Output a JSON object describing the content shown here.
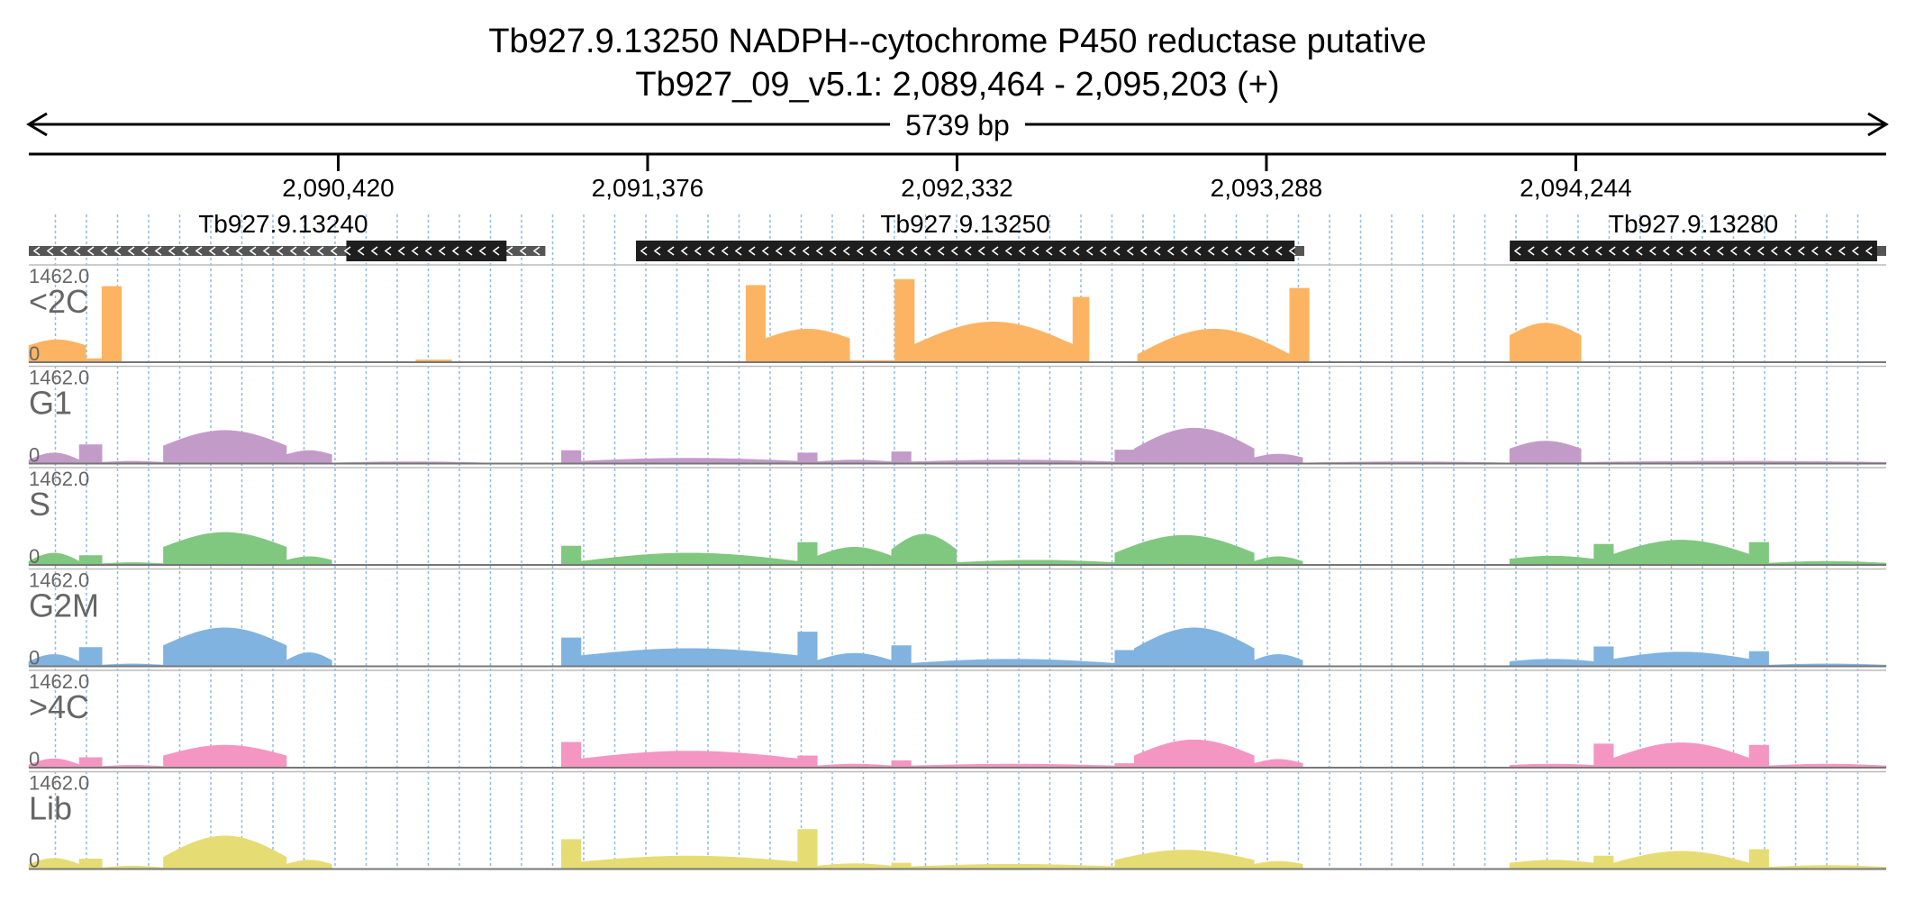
{
  "title_line1": "Tb927.9.13250  NADPH--cytochrome P450 reductase  putative",
  "title_line2": "Tb927_09_v5.1: 2,089,464 - 2,095,203 (+)",
  "span_label": "5739 bp",
  "colors": {
    "<2C": "#fdb462",
    "G1": "#c39bc9",
    "S": "#80c780",
    "G2M": "#80b3e0",
    ">4C": "#f595c2",
    "Lib": "#e6dc74",
    "gene_box": "#1e1e1e",
    "gene_line": "#555555",
    "grid": "#8fbce6",
    "axis": "#000000",
    "track_label": "#666666"
  },
  "chart_data": {
    "type": "area",
    "genome_range": [
      2089464,
      2095203
    ],
    "x_ticks": [
      {
        "pos": 2090420,
        "label": "2,090,420"
      },
      {
        "pos": 2091376,
        "label": "2,091,376"
      },
      {
        "pos": 2092332,
        "label": "2,092,332"
      },
      {
        "pos": 2093288,
        "label": "2,093,288"
      },
      {
        "pos": 2094244,
        "label": "2,094,244"
      }
    ],
    "genes": [
      {
        "name": "Tb927.9.13240",
        "line": [
          2089464,
          2091060
        ],
        "cds": [
          2090445,
          2090940
        ],
        "strand": "-"
      },
      {
        "name": "Tb927.9.13250",
        "line": [
          2091340,
          2093405
        ],
        "cds": [
          2091340,
          2093375
        ],
        "strand": "-"
      },
      {
        "name": "Tb927.9.13280",
        "line": [
          2094040,
          2095203
        ],
        "cds": [
          2094040,
          2095175
        ],
        "strand": "-"
      }
    ],
    "tracks": [
      {
        "name": "<2C",
        "ymax": "1462.0",
        "ymin": "0",
        "segments": [
          [
            2089464,
            2089640,
            280,
            380,
            "dome"
          ],
          [
            2089640,
            2089690,
            60,
            60,
            "flat"
          ],
          [
            2089690,
            2089685,
            0,
            0,
            "flat"
          ],
          [
            2089690,
            2089700,
            30,
            30,
            "flat"
          ],
          [
            2089690,
            2089690,
            0,
            0,
            "flat"
          ],
          [
            2089690,
            2089695,
            0,
            0,
            "flat"
          ],
          [
            2089690,
            2089690,
            0,
            0,
            "flat"
          ],
          [
            2089690,
            2089690,
            0,
            0,
            "flat"
          ],
          [
            2089700,
            2089690,
            0,
            0,
            "flat"
          ],
          [
            2089690,
            2089700,
            0,
            0,
            "flat"
          ],
          [
            2089690,
            2089690,
            0,
            0,
            "flat"
          ],
          [
            2089690,
            2089690,
            0,
            0,
            "flat"
          ],
          [
            2089690,
            2089690,
            0,
            0,
            "flat"
          ],
          [
            2089690,
            2089690,
            0,
            0,
            "flat"
          ],
          [
            2089690,
            2089690,
            0,
            0,
            "flat"
          ],
          [
            2089690,
            2089690,
            0,
            0,
            "flat"
          ],
          [
            2089690,
            2089690,
            0,
            0,
            "flat"
          ],
          [
            2089690,
            2089690,
            0,
            0,
            "flat"
          ],
          [
            2089690,
            2089690,
            0,
            0,
            "flat"
          ],
          [
            2089690,
            2089690,
            0,
            0,
            "flat"
          ],
          [
            2089690,
            2089750,
            1280,
            1280,
            "flat"
          ],
          [
            2090660,
            2090770,
            40,
            40,
            "flat"
          ],
          [
            2091680,
            2091740,
            1300,
            1300,
            "flat"
          ],
          [
            2091740,
            2092000,
            400,
            560,
            "dome"
          ],
          [
            2092000,
            2092140,
            30,
            30,
            "flat"
          ],
          [
            2092140,
            2092200,
            1400,
            1400,
            "flat"
          ],
          [
            2092200,
            2092690,
            300,
            680,
            "dome"
          ],
          [
            2092690,
            2092740,
            1100,
            1100,
            "flat"
          ],
          [
            2092890,
            2093360,
            130,
            560,
            "dome"
          ],
          [
            2093360,
            2093420,
            1250,
            1250,
            "flat"
          ],
          [
            2094040,
            2094260,
            450,
            660,
            "dome"
          ]
        ]
      },
      {
        "name": "G1",
        "ymax": "1462.0",
        "ymin": "0",
        "segments": [
          [
            2089464,
            2089620,
            60,
            180,
            "dome"
          ],
          [
            2089620,
            2089690,
            320,
            320,
            "flat"
          ],
          [
            2089690,
            2089880,
            20,
            40,
            "dome"
          ],
          [
            2089880,
            2090260,
            300,
            560,
            "dome"
          ],
          [
            2090260,
            2090400,
            150,
            220,
            "dome"
          ],
          [
            2090400,
            2090880,
            10,
            30,
            "dome"
          ],
          [
            2091110,
            2091170,
            220,
            220,
            "flat"
          ],
          [
            2091170,
            2091840,
            40,
            90,
            "dome"
          ],
          [
            2091840,
            2091900,
            180,
            180,
            "flat"
          ],
          [
            2091900,
            2092130,
            30,
            60,
            "dome"
          ],
          [
            2092130,
            2092190,
            200,
            200,
            "flat"
          ],
          [
            2092190,
            2092820,
            30,
            60,
            "dome"
          ],
          [
            2092820,
            2092880,
            230,
            230,
            "flat"
          ],
          [
            2092880,
            2093250,
            250,
            600,
            "dome"
          ],
          [
            2093250,
            2093400,
            100,
            160,
            "dome"
          ],
          [
            2093400,
            2094040,
            10,
            30,
            "dome"
          ],
          [
            2094040,
            2094260,
            250,
            380,
            "dome"
          ],
          [
            2094260,
            2095203,
            20,
            40,
            "dome"
          ]
        ]
      },
      {
        "name": "S",
        "ymax": "1462.0",
        "ymin": "0",
        "segments": [
          [
            2089464,
            2089620,
            60,
            200,
            "dome"
          ],
          [
            2089620,
            2089690,
            160,
            160,
            "flat"
          ],
          [
            2089690,
            2089880,
            20,
            40,
            "dome"
          ],
          [
            2089880,
            2090260,
            300,
            550,
            "dome"
          ],
          [
            2090260,
            2090400,
            80,
            140,
            "dome"
          ],
          [
            2091110,
            2091170,
            320,
            320,
            "flat"
          ],
          [
            2091170,
            2091840,
            60,
            200,
            "dome"
          ],
          [
            2091840,
            2091900,
            380,
            380,
            "flat"
          ],
          [
            2091900,
            2092130,
            150,
            300,
            "dome"
          ],
          [
            2092130,
            2092330,
            260,
            520,
            "dome"
          ],
          [
            2092330,
            2092820,
            40,
            80,
            "dome"
          ],
          [
            2092820,
            2093250,
            200,
            500,
            "dome"
          ],
          [
            2093250,
            2093400,
            60,
            140,
            "dome"
          ],
          [
            2094040,
            2094300,
            100,
            150,
            "dome"
          ],
          [
            2094300,
            2094360,
            350,
            350,
            "flat"
          ],
          [
            2094360,
            2094780,
            180,
            420,
            "dome"
          ],
          [
            2094780,
            2094840,
            380,
            380,
            "flat"
          ],
          [
            2094840,
            2095203,
            30,
            60,
            "dome"
          ]
        ]
      },
      {
        "name": "G2M",
        "ymax": "1462.0",
        "ymin": "0",
        "segments": [
          [
            2089464,
            2089620,
            80,
            200,
            "dome"
          ],
          [
            2089620,
            2089690,
            320,
            320,
            "flat"
          ],
          [
            2089690,
            2089880,
            20,
            40,
            "dome"
          ],
          [
            2089880,
            2090260,
            350,
            650,
            "dome"
          ],
          [
            2090260,
            2090400,
            100,
            230,
            "dome"
          ],
          [
            2091110,
            2091170,
            480,
            480,
            "flat"
          ],
          [
            2091170,
            2091840,
            180,
            300,
            "dome"
          ],
          [
            2091840,
            2091900,
            580,
            580,
            "flat"
          ],
          [
            2091900,
            2092130,
            100,
            220,
            "dome"
          ],
          [
            2092130,
            2092190,
            350,
            350,
            "flat"
          ],
          [
            2092190,
            2092820,
            50,
            120,
            "dome"
          ],
          [
            2092820,
            2092880,
            270,
            270,
            "flat"
          ],
          [
            2092880,
            2093250,
            300,
            650,
            "dome"
          ],
          [
            2093250,
            2093400,
            100,
            200,
            "dome"
          ],
          [
            2094040,
            2094300,
            80,
            120,
            "dome"
          ],
          [
            2094300,
            2094360,
            330,
            330,
            "flat"
          ],
          [
            2094360,
            2094780,
            120,
            240,
            "dome"
          ],
          [
            2094780,
            2094840,
            250,
            250,
            "flat"
          ],
          [
            2094840,
            2095203,
            20,
            40,
            "dome"
          ]
        ]
      },
      {
        "name": ">4C",
        "ymax": "1462.0",
        "ymin": "0",
        "segments": [
          [
            2089464,
            2089620,
            50,
            150,
            "dome"
          ],
          [
            2089620,
            2089690,
            170,
            170,
            "flat"
          ],
          [
            2089690,
            2089880,
            20,
            40,
            "dome"
          ],
          [
            2089880,
            2090260,
            200,
            380,
            "dome"
          ],
          [
            2091110,
            2091170,
            430,
            430,
            "flat"
          ],
          [
            2091170,
            2091840,
            150,
            280,
            "dome"
          ],
          [
            2091840,
            2091900,
            200,
            200,
            "flat"
          ],
          [
            2091900,
            2092130,
            30,
            60,
            "dome"
          ],
          [
            2092130,
            2092190,
            120,
            120,
            "flat"
          ],
          [
            2092190,
            2092820,
            30,
            60,
            "dome"
          ],
          [
            2092820,
            2092880,
            70,
            70,
            "flat"
          ],
          [
            2092880,
            2093250,
            200,
            470,
            "dome"
          ],
          [
            2093250,
            2093400,
            70,
            140,
            "dome"
          ],
          [
            2094040,
            2094300,
            40,
            60,
            "dome"
          ],
          [
            2094300,
            2094360,
            400,
            400,
            "flat"
          ],
          [
            2094360,
            2094780,
            160,
            420,
            "dome"
          ],
          [
            2094780,
            2094840,
            380,
            380,
            "flat"
          ],
          [
            2094840,
            2095203,
            30,
            60,
            "dome"
          ]
        ]
      },
      {
        "name": "Lib",
        "ymax": "1462.0",
        "ymin": "0",
        "segments": [
          [
            2089464,
            2089620,
            80,
            180,
            "dome"
          ],
          [
            2089620,
            2089690,
            170,
            170,
            "flat"
          ],
          [
            2089690,
            2089880,
            20,
            50,
            "dome"
          ],
          [
            2089880,
            2090260,
            200,
            560,
            "dome"
          ],
          [
            2090260,
            2090400,
            80,
            150,
            "dome"
          ],
          [
            2091110,
            2091170,
            500,
            500,
            "flat"
          ],
          [
            2091170,
            2091840,
            120,
            220,
            "dome"
          ],
          [
            2091840,
            2091900,
            670,
            670,
            "flat"
          ],
          [
            2091900,
            2092130,
            50,
            90,
            "dome"
          ],
          [
            2092130,
            2092190,
            100,
            100,
            "flat"
          ],
          [
            2092190,
            2092820,
            40,
            80,
            "dome"
          ],
          [
            2092820,
            2093250,
            150,
            320,
            "dome"
          ],
          [
            2093250,
            2093400,
            80,
            130,
            "dome"
          ],
          [
            2094040,
            2094300,
            100,
            150,
            "dome"
          ],
          [
            2094300,
            2094360,
            220,
            220,
            "flat"
          ],
          [
            2094360,
            2094780,
            100,
            300,
            "dome"
          ],
          [
            2094780,
            2094840,
            330,
            330,
            "flat"
          ],
          [
            2094840,
            2095203,
            30,
            60,
            "dome"
          ]
        ]
      }
    ]
  }
}
